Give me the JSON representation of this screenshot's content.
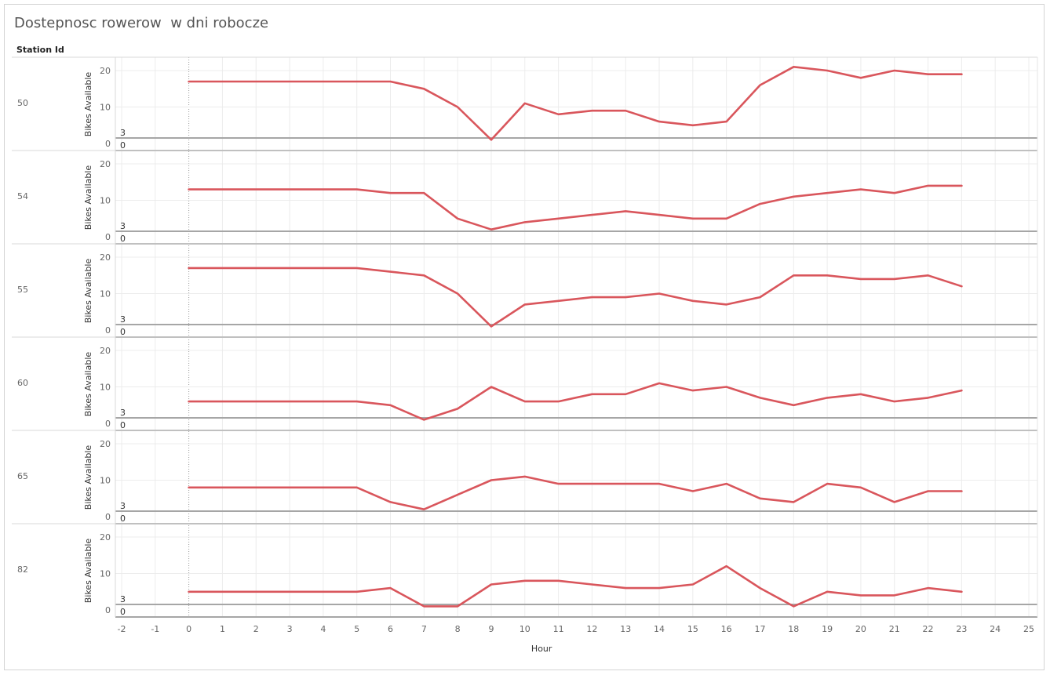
{
  "title": "Dostepnosc rowerow  w dni robocze",
  "row_header": "Station Id",
  "colors": {
    "line": "#d9565c",
    "ref_line": "#a6a6a6",
    "grid": "#ececec"
  },
  "chart_data": {
    "type": "line",
    "title": "Dostepnosc rowerow  w dni robocze",
    "xlabel": "Hour",
    "ylabel": "Bikes Available",
    "xlim": [
      -2,
      25
    ],
    "ylim": [
      0,
      20
    ],
    "x_ticks": [
      -2,
      -1,
      0,
      1,
      2,
      3,
      4,
      5,
      6,
      7,
      8,
      9,
      10,
      11,
      12,
      13,
      14,
      15,
      16,
      17,
      18,
      19,
      20,
      21,
      22,
      23,
      24,
      25
    ],
    "y_ticks": [
      0,
      10,
      20
    ],
    "reference_lines": [
      3,
      0
    ],
    "grid": true,
    "x": [
      0,
      1,
      2,
      3,
      4,
      5,
      6,
      7,
      8,
      9,
      10,
      11,
      12,
      13,
      14,
      15,
      16,
      17,
      18,
      19,
      20,
      21,
      22,
      23
    ],
    "series": [
      {
        "name": "50",
        "values": [
          17,
          17,
          17,
          17,
          17,
          17,
          17,
          15,
          10,
          1,
          11,
          8,
          9,
          9,
          6,
          5,
          6,
          16,
          21,
          20,
          18,
          20,
          19,
          19
        ]
      },
      {
        "name": "54",
        "values": [
          13,
          13,
          13,
          13,
          13,
          13,
          12,
          12,
          5,
          2,
          4,
          5,
          6,
          7,
          6,
          5,
          5,
          9,
          11,
          12,
          13,
          12,
          14,
          14
        ]
      },
      {
        "name": "55",
        "values": [
          17,
          17,
          17,
          17,
          17,
          17,
          16,
          15,
          10,
          1,
          7,
          8,
          9,
          9,
          10,
          8,
          7,
          9,
          15,
          15,
          14,
          14,
          15,
          12
        ]
      },
      {
        "name": "60",
        "values": [
          6,
          6,
          6,
          6,
          6,
          6,
          5,
          1,
          4,
          10,
          6,
          6,
          8,
          8,
          11,
          9,
          10,
          7,
          5,
          7,
          8,
          6,
          7,
          9
        ]
      },
      {
        "name": "65",
        "values": [
          8,
          8,
          8,
          8,
          8,
          8,
          4,
          2,
          6,
          10,
          11,
          9,
          9,
          9,
          9,
          7,
          9,
          5,
          4,
          9,
          8,
          4,
          7,
          7
        ]
      },
      {
        "name": "82",
        "values": [
          5,
          5,
          5,
          5,
          5,
          5,
          6,
          1,
          1,
          7,
          8,
          8,
          7,
          6,
          6,
          7,
          12,
          6,
          1,
          5,
          4,
          4,
          6,
          5
        ]
      }
    ]
  }
}
